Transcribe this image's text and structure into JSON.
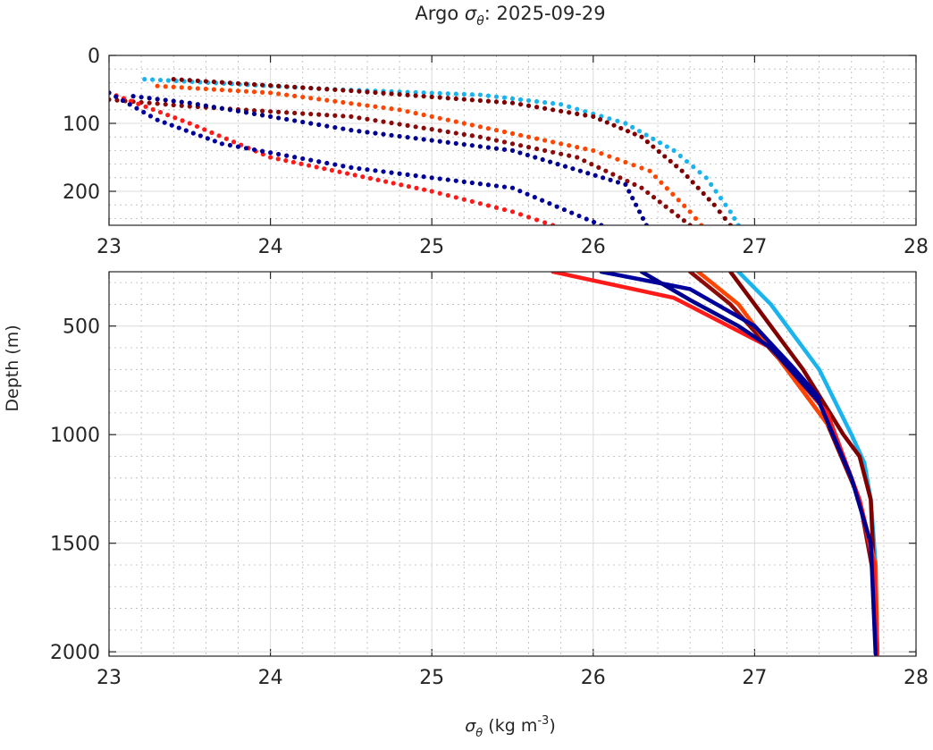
{
  "chart_data": {
    "type": "scatter",
    "title": {
      "prefix": "Argo ",
      "symbol": "σ",
      "sub": "θ",
      "suffix": ": 2025-09-29"
    },
    "xlabel": {
      "symbol": "σ",
      "sub": "θ",
      "unit": " (kg m",
      "exp": "-3",
      "close": ")"
    },
    "ylabel": "Depth (m)",
    "xlim": [
      23,
      28
    ],
    "xticks": [
      "23",
      "24",
      "25",
      "26",
      "27",
      "28"
    ],
    "panels": [
      {
        "name": "upper",
        "ylim": [
          0,
          250
        ],
        "yticks": [
          "0",
          "100",
          "200"
        ],
        "ytick_values": [
          0,
          100,
          200
        ],
        "style": "dots"
      },
      {
        "name": "lower",
        "ylim": [
          250,
          2020
        ],
        "yticks": [
          "500",
          "1000",
          "1500",
          "2000"
        ],
        "ytick_values": [
          500,
          1000,
          1500,
          2000
        ],
        "style": "line"
      }
    ],
    "grid": true,
    "series": [
      {
        "name": "profile-light-blue",
        "color": "#1ab3ee",
        "upper": [
          [
            23.22,
            35
          ],
          [
            24.4,
            50
          ],
          [
            25.3,
            58
          ],
          [
            25.8,
            72
          ],
          [
            26.2,
            100
          ],
          [
            26.5,
            140
          ],
          [
            26.7,
            180
          ],
          [
            26.85,
            230
          ],
          [
            26.9,
            250
          ]
        ],
        "lower": [
          [
            26.9,
            250
          ],
          [
            27.1,
            400
          ],
          [
            27.4,
            700
          ],
          [
            27.6,
            1000
          ],
          [
            27.68,
            1130
          ],
          [
            27.72,
            1300
          ],
          [
            27.75,
            1600
          ],
          [
            27.76,
            2010
          ]
        ]
      },
      {
        "name": "profile-dark-red-a",
        "color": "#800000",
        "upper": [
          [
            23.4,
            35
          ],
          [
            24.5,
            52
          ],
          [
            25.5,
            70
          ],
          [
            26.0,
            90
          ],
          [
            26.3,
            120
          ],
          [
            26.55,
            170
          ],
          [
            26.75,
            220
          ],
          [
            26.85,
            250
          ]
        ],
        "lower": [
          [
            26.85,
            250
          ],
          [
            27.0,
            400
          ],
          [
            27.3,
            700
          ],
          [
            27.55,
            1000
          ],
          [
            27.65,
            1100
          ],
          [
            27.72,
            1300
          ],
          [
            27.75,
            1800
          ],
          [
            27.76,
            2010
          ]
        ]
      },
      {
        "name": "profile-dark-red-b",
        "color": "#8b0a0a",
        "upper": [
          [
            23.0,
            65
          ],
          [
            23.5,
            75
          ],
          [
            24.5,
            90
          ],
          [
            25.3,
            120
          ],
          [
            25.9,
            150
          ],
          [
            26.3,
            195
          ],
          [
            26.6,
            250
          ]
        ],
        "lower": [
          [
            26.6,
            250
          ],
          [
            26.85,
            400
          ],
          [
            27.15,
            650
          ],
          [
            27.45,
            950
          ],
          [
            27.65,
            1300
          ],
          [
            27.75,
            1700
          ],
          [
            27.76,
            2010
          ]
        ]
      },
      {
        "name": "profile-orange",
        "color": "#ff4500",
        "upper": [
          [
            23.3,
            45
          ],
          [
            24.0,
            55
          ],
          [
            24.8,
            80
          ],
          [
            25.5,
            115
          ],
          [
            26.0,
            140
          ],
          [
            26.35,
            170
          ],
          [
            26.6,
            230
          ],
          [
            26.67,
            250
          ]
        ],
        "lower": [
          [
            26.65,
            250
          ],
          [
            26.9,
            400
          ],
          [
            27.2,
            700
          ],
          [
            27.5,
            1000
          ],
          [
            27.65,
            1300
          ],
          [
            27.75,
            1600
          ],
          [
            27.76,
            2010
          ]
        ]
      },
      {
        "name": "profile-red",
        "color": "#ff1a1a",
        "upper": [
          [
            23.0,
            55
          ],
          [
            23.5,
            100
          ],
          [
            24.0,
            150
          ],
          [
            25.0,
            200
          ],
          [
            25.5,
            230
          ],
          [
            25.75,
            250
          ]
        ],
        "lower": [
          [
            25.75,
            250
          ],
          [
            26.5,
            370
          ],
          [
            27.1,
            600
          ],
          [
            27.45,
            900
          ],
          [
            27.65,
            1300
          ],
          [
            27.74,
            1600
          ],
          [
            27.76,
            2010
          ]
        ]
      },
      {
        "name": "profile-navy-a",
        "color": "#00009c",
        "upper": [
          [
            23.0,
            55
          ],
          [
            23.3,
            95
          ],
          [
            23.7,
            130
          ],
          [
            24.5,
            165
          ],
          [
            25.5,
            195
          ],
          [
            26.05,
            250
          ]
        ],
        "lower": [
          [
            26.05,
            250
          ],
          [
            26.6,
            330
          ],
          [
            27.0,
            500
          ],
          [
            27.25,
            700
          ],
          [
            27.4,
            830
          ]
        ]
      },
      {
        "name": "profile-navy-b",
        "color": "#000090",
        "upper": [
          [
            23.15,
            60
          ],
          [
            23.5,
            70
          ],
          [
            24.5,
            110
          ],
          [
            25.5,
            140
          ],
          [
            26.2,
            190
          ],
          [
            26.33,
            250
          ]
        ],
        "lower": [
          [
            26.3,
            250
          ],
          [
            26.6,
            380
          ],
          [
            26.9,
            500
          ],
          [
            27.1,
            600
          ],
          [
            27.4,
            850
          ],
          [
            27.6,
            1200
          ],
          [
            27.72,
            1500
          ],
          [
            27.75,
            2010
          ]
        ]
      }
    ]
  }
}
